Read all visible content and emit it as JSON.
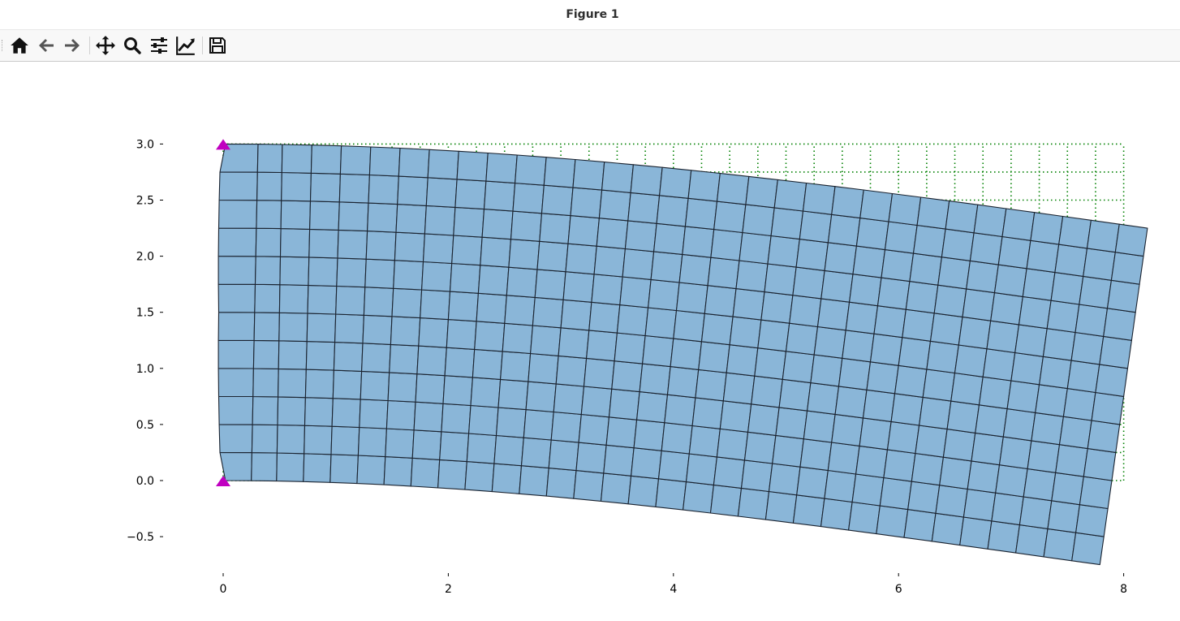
{
  "window": {
    "title": "Figure 1"
  },
  "toolbar": {
    "buttons": [
      {
        "name": "home-icon",
        "label": "Home"
      },
      {
        "name": "back-arrow-icon",
        "label": "Back"
      },
      {
        "name": "forward-arrow-icon",
        "label": "Forward"
      },
      {
        "name": "pan-icon",
        "label": "Pan"
      },
      {
        "name": "zoom-icon",
        "label": "Zoom"
      },
      {
        "name": "configure-subplots-icon",
        "label": "Subplots"
      },
      {
        "name": "edit-axis-icon",
        "label": "Customize"
      },
      {
        "name": "save-icon",
        "label": "Save"
      }
    ]
  },
  "chart_data": {
    "type": "mesh",
    "x_ticks": [
      "0",
      "2",
      "4",
      "6",
      "8"
    ],
    "y_ticks": [
      "3.0",
      "2.5",
      "2.0",
      "1.5",
      "1.0",
      "0.5",
      "0.0",
      "−0.5"
    ],
    "xlim": [
      -0.2,
      8.3
    ],
    "ylim": [
      -0.85,
      3.15
    ],
    "undeformed_mesh": {
      "length": 8,
      "height": 3,
      "elements_x": 32,
      "elements_y": 12,
      "style": "dotted",
      "color": "#008000"
    },
    "deformed_mesh": {
      "elements_x": 32,
      "elements_y": 12,
      "fill": "#8ab6d8",
      "edge_color": "#1a2330",
      "tip_displacement_y": -0.75,
      "tip_x_shift": -0.2
    },
    "supports": [
      {
        "x": 0,
        "y": 3.0
      },
      {
        "x": 0,
        "y": 0.0
      }
    ],
    "support_color": "#c000c0",
    "grid": false
  }
}
